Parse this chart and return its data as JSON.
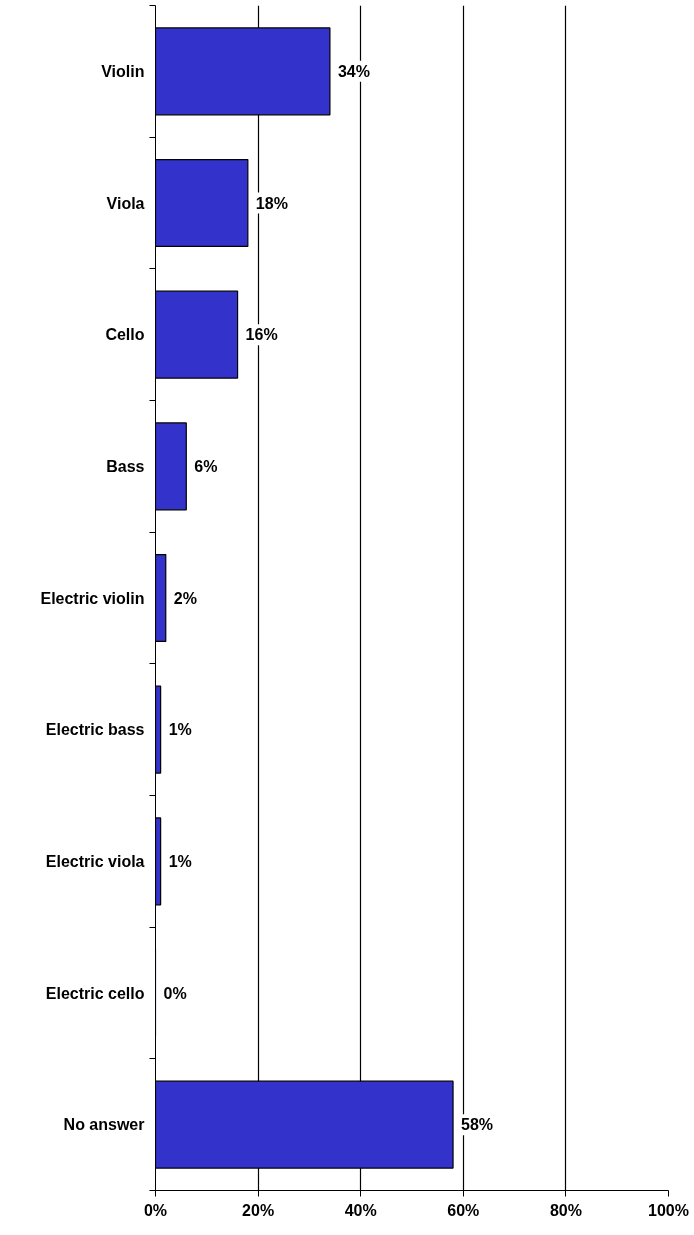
{
  "chart_data": {
    "type": "bar",
    "orientation": "horizontal",
    "categories": [
      "Violin",
      "Viola",
      "Cello",
      "Bass",
      "Electric violin",
      "Electric bass",
      "Electric viola",
      "Electric cello",
      "No answer"
    ],
    "values": [
      34,
      18,
      16,
      6,
      2,
      1,
      1,
      0,
      58
    ],
    "value_labels": [
      "34%",
      "18%",
      "16%",
      "6%",
      "2%",
      "1%",
      "1%",
      "0%",
      "58%"
    ],
    "color": "#3333cc",
    "xlim": [
      0,
      100
    ],
    "xticks": [
      {
        "value": 0,
        "label": "0%"
      },
      {
        "value": 20,
        "label": "20%"
      },
      {
        "value": 40,
        "label": "40%"
      },
      {
        "value": 60,
        "label": "60%"
      },
      {
        "value": 80,
        "label": "80%"
      },
      {
        "value": 100,
        "label": "100%"
      }
    ],
    "grid": "x"
  }
}
